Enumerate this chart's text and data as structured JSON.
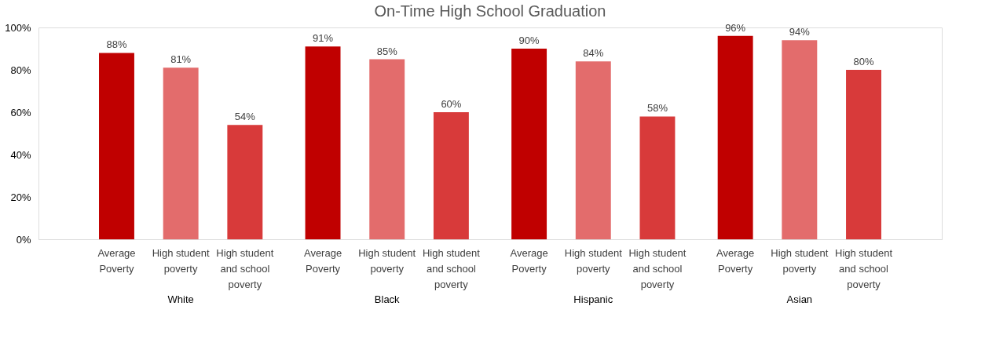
{
  "chart_data": {
    "type": "bar",
    "title": "On-Time High School Graduation",
    "categories": [
      "White",
      "Black",
      "Hispanic",
      "Asian"
    ],
    "series": [
      {
        "name": "Average Poverty",
        "color": "#c00000",
        "values": [
          88,
          91,
          90,
          96
        ],
        "value_labels": [
          "88%",
          "91%",
          "90%",
          "96%"
        ]
      },
      {
        "name": "High student poverty",
        "color": "#e36c6c",
        "values": [
          81,
          85,
          84,
          94
        ],
        "value_labels": [
          "81%",
          "85%",
          "84%",
          "94%"
        ]
      },
      {
        "name": "High student and school poverty",
        "color": "#d83a3a",
        "values": [
          54,
          60,
          58,
          80
        ],
        "value_labels": [
          "54%",
          "60%",
          "58%",
          "80%"
        ]
      }
    ],
    "ylim": [
      0,
      100
    ],
    "yticks": [
      {
        "value": 0,
        "label": "0%"
      },
      {
        "value": 20,
        "label": "20%"
      },
      {
        "value": 40,
        "label": "40%"
      },
      {
        "value": 60,
        "label": "60%"
      },
      {
        "value": 80,
        "label": "80%"
      },
      {
        "value": 100,
        "label": "100%"
      }
    ],
    "grid": false,
    "legend": false
  }
}
